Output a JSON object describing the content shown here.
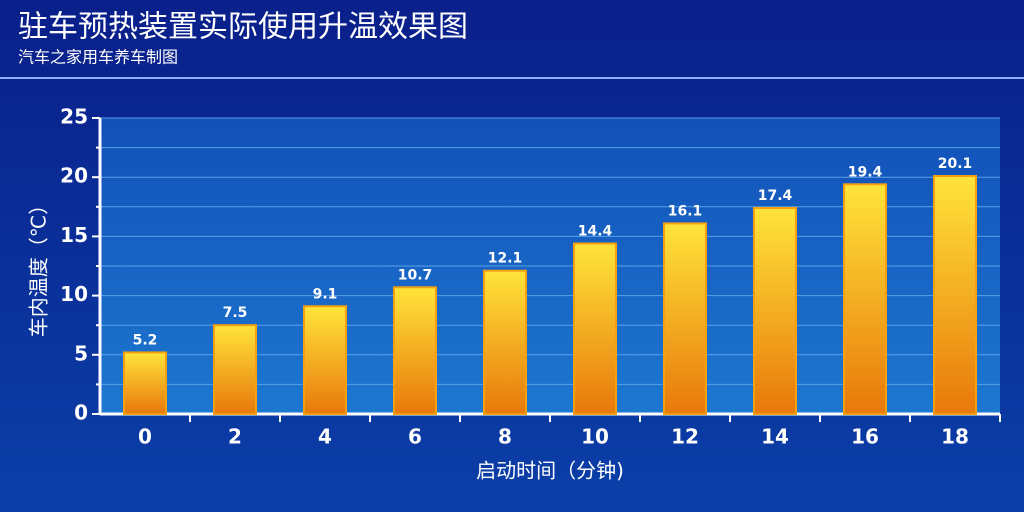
{
  "chart_data": {
    "type": "bar",
    "title": "驻车预热装置实际使用升温效果图",
    "subtitle": "汽车之家用车养车制图",
    "x_label": "启动时间（分钟)",
    "y_label": "车内温度（℃）",
    "categories": [
      "0",
      "2",
      "4",
      "6",
      "8",
      "10",
      "12",
      "14",
      "16",
      "18"
    ],
    "values": [
      5.2,
      7.5,
      9.1,
      10.7,
      12.1,
      14.4,
      16.1,
      17.4,
      19.4,
      20.1
    ],
    "color": "#f5a010",
    "ylim": [
      0,
      25
    ],
    "yticks": [
      0,
      5,
      10,
      15,
      20,
      25
    ],
    "minor_yticks": [
      2.5,
      7.5,
      12.5,
      17.5,
      22.5
    ],
    "grid": true
  }
}
